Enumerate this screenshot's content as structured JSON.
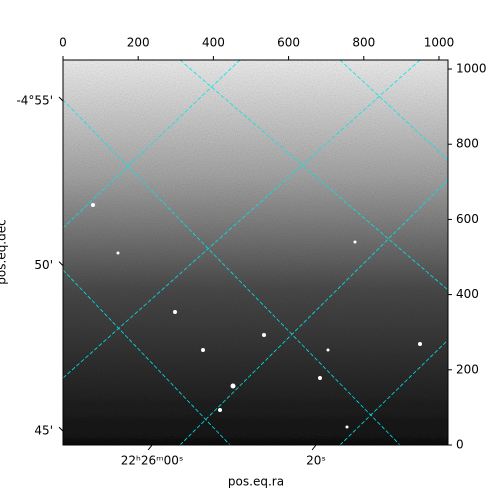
{
  "chart_data": {
    "type": "image",
    "xlabel": "pos.eq.ra",
    "ylabel": "pos.eq.dec",
    "xlim": [
      0,
      1024
    ],
    "ylim": [
      0,
      1024
    ],
    "xticks": [
      0,
      200,
      400,
      600,
      800,
      1000
    ],
    "yticks": [
      0,
      200,
      400,
      600,
      800,
      1000
    ],
    "world_xticks": [
      {
        "value": 237,
        "label": "22ʰ26ᵐ00ˢ"
      },
      {
        "value": 673,
        "label": "20ˢ"
      }
    ],
    "world_yticks": [
      {
        "value": 37,
        "label": "45'"
      },
      {
        "value": 477,
        "label": "50'"
      },
      {
        "value": 915,
        "label": "-4°55'"
      }
    ],
    "grid_color": "#00e5e5"
  }
}
